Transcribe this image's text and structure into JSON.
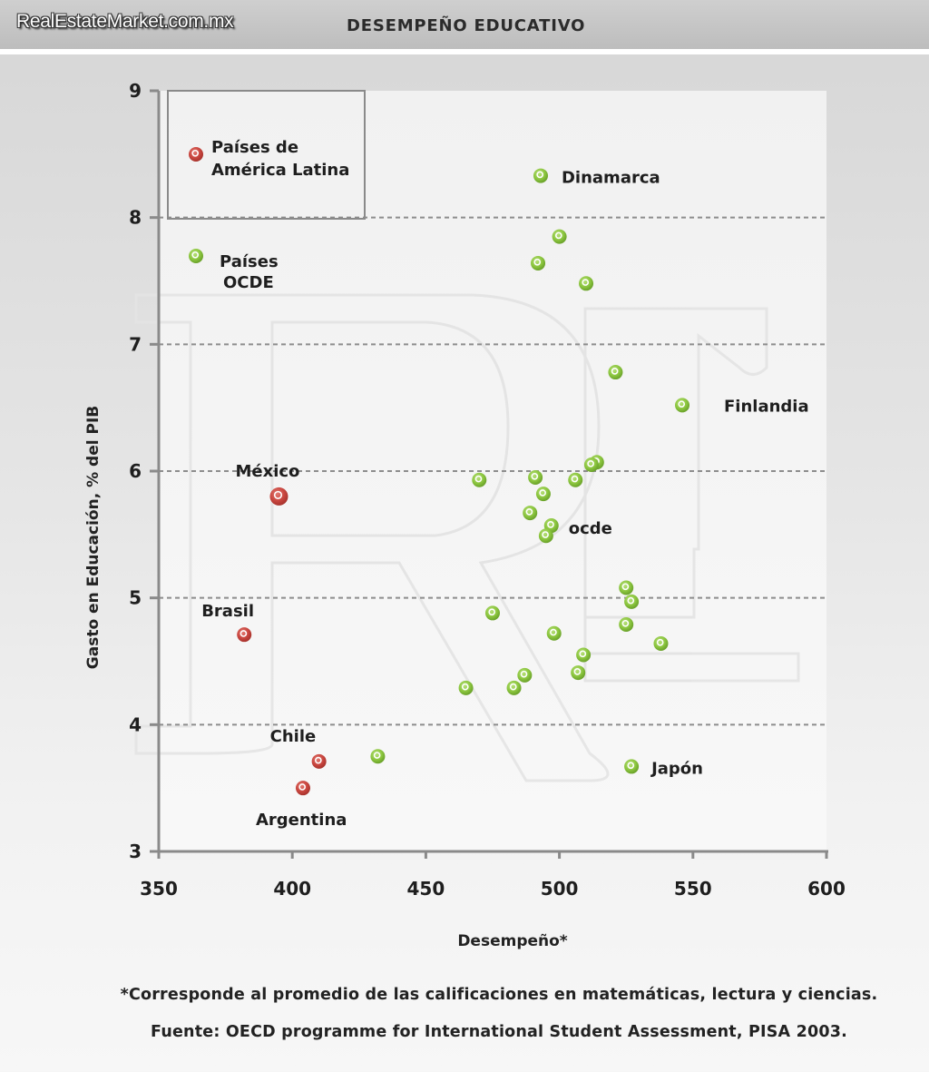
{
  "header": {
    "brand": "RealEstateMarket.com.mx",
    "title": "DESEMPEÑO EDUCATIVO"
  },
  "chart_data": {
    "type": "scatter",
    "title": "DESEMPEÑO EDUCATIVO",
    "xlabel": "Desempeño*",
    "ylabel": "Gasto en Educación, % del PIB",
    "xlim": [
      350,
      600
    ],
    "ylim": [
      3,
      9
    ],
    "x_ticks": [
      350,
      400,
      450,
      500,
      550,
      600
    ],
    "y_ticks": [
      3,
      4,
      5,
      6,
      7,
      8,
      9
    ],
    "grid": "horizontal dashed",
    "legend": {
      "position": "top-left",
      "items": [
        {
          "label": "Países de América Latina",
          "color": "#c9463f"
        },
        {
          "label": "Países OCDE",
          "color": "#8cc63f"
        }
      ]
    },
    "colors": {
      "latin_america": "#c9463f",
      "ocde": "#8cc63f"
    },
    "series": [
      {
        "name": "Países de América Latina",
        "points": [
          {
            "x": 395,
            "y": 5.8,
            "label": "México"
          },
          {
            "x": 382,
            "y": 4.71,
            "label": "Brasil"
          },
          {
            "x": 410,
            "y": 3.71,
            "label": "Chile"
          },
          {
            "x": 404,
            "y": 3.5,
            "label": "Argentina"
          }
        ]
      },
      {
        "name": "Países OCDE",
        "points": [
          {
            "x": 493,
            "y": 8.33,
            "label": "Dinamarca"
          },
          {
            "x": 500,
            "y": 7.85
          },
          {
            "x": 492,
            "y": 7.64
          },
          {
            "x": 510,
            "y": 7.48
          },
          {
            "x": 521,
            "y": 6.78
          },
          {
            "x": 546,
            "y": 6.52,
            "label": "Finlandia"
          },
          {
            "x": 514,
            "y": 6.07
          },
          {
            "x": 512,
            "y": 6.05
          },
          {
            "x": 470,
            "y": 5.93
          },
          {
            "x": 491,
            "y": 5.95
          },
          {
            "x": 506,
            "y": 5.93
          },
          {
            "x": 494,
            "y": 5.82
          },
          {
            "x": 489,
            "y": 5.67
          },
          {
            "x": 497,
            "y": 5.57,
            "label": "ocde"
          },
          {
            "x": 495,
            "y": 5.49
          },
          {
            "x": 525,
            "y": 5.08
          },
          {
            "x": 527,
            "y": 4.97
          },
          {
            "x": 475,
            "y": 4.88
          },
          {
            "x": 525,
            "y": 4.79
          },
          {
            "x": 498,
            "y": 4.72
          },
          {
            "x": 538,
            "y": 4.64
          },
          {
            "x": 509,
            "y": 4.55
          },
          {
            "x": 507,
            "y": 4.41
          },
          {
            "x": 487,
            "y": 4.39
          },
          {
            "x": 465,
            "y": 4.29
          },
          {
            "x": 483,
            "y": 4.29
          },
          {
            "x": 432,
            "y": 3.75
          },
          {
            "x": 527,
            "y": 3.67,
            "label": "Japón"
          }
        ]
      }
    ]
  },
  "footnotes": {
    "note": "*Corresponde al promedio de las calificaciones en matemáticas, lectura y ciencias.",
    "source": "Fuente: OECD programme for International Student Assessment, PISA 2003."
  }
}
